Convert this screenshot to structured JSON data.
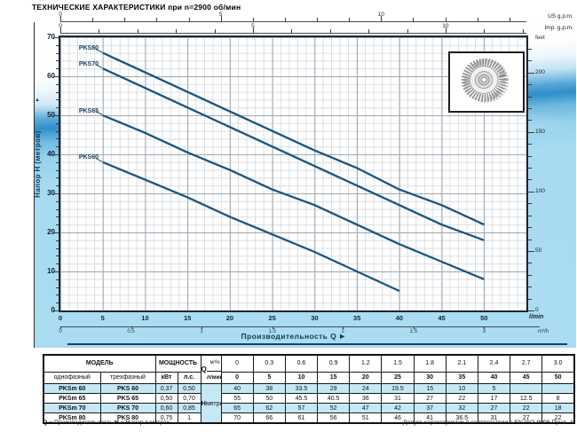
{
  "title": "ТЕХНИЧЕСКИЕ ХАРАКТЕРИСТИКИ при n=2900 об/мин",
  "chart": {
    "top_axis_us": {
      "tick_values": [
        0,
        5,
        10
      ],
      "label": "US g.p.m."
    },
    "top_axis_imp": {
      "tick_values": [
        0,
        5,
        10
      ],
      "label": "Imp. g.p.m."
    },
    "y_left": {
      "label": "Напор Н  (метров)",
      "arrow": "▲",
      "ticks": [
        0,
        10,
        20,
        30,
        40,
        50,
        60,
        70
      ]
    },
    "y_right": {
      "unit": "feet",
      "ticks": [
        0,
        50,
        100,
        150,
        200
      ]
    },
    "x_lmin": {
      "unit": "l/min",
      "ticks": [
        0,
        5,
        10,
        15,
        20,
        25,
        30,
        35,
        40,
        45,
        50
      ]
    },
    "x_m3h": {
      "unit": "m³/h",
      "ticks": [
        "0",
        "0.5",
        "1",
        "1.5",
        "2",
        "2.5",
        "3"
      ]
    },
    "x_label": "Производительность  Q",
    "x_arrow": "▶"
  },
  "chart_data": {
    "type": "line",
    "title": "ТЕХНИЧЕСКИЕ ХАРАКТЕРИСТИКИ при n=2900 об/мин",
    "xlabel": "Производительность Q (л/мин)",
    "ylabel": "Напор H (метров)",
    "xlim": [
      0,
      55
    ],
    "ylim": [
      0,
      70
    ],
    "grid": true,
    "legend_position": "inline-left",
    "line_color": "#1a5580",
    "series": [
      {
        "name": "PKS80",
        "x": [
          5,
          10,
          15,
          20,
          25,
          30,
          35,
          40,
          45,
          50
        ],
        "y": [
          66,
          61,
          56,
          51,
          46,
          41,
          36.5,
          31,
          27,
          22
        ]
      },
      {
        "name": "PKS70",
        "x": [
          5,
          10,
          15,
          20,
          25,
          30,
          35,
          40,
          45,
          50
        ],
        "y": [
          62,
          57,
          52,
          47,
          42,
          37,
          32,
          27,
          22,
          18
        ]
      },
      {
        "name": "PKS65",
        "x": [
          5,
          10,
          15,
          20,
          25,
          30,
          35,
          40,
          45,
          50
        ],
        "y": [
          50,
          45.5,
          40.5,
          36,
          31,
          27,
          22,
          17,
          12.5,
          8
        ]
      },
      {
        "name": "PKS60",
        "x": [
          5,
          10,
          15,
          20,
          25,
          30,
          35,
          40
        ],
        "y": [
          38,
          33.5,
          29,
          24,
          19.5,
          15,
          10,
          5
        ]
      }
    ]
  },
  "table": {
    "header": {
      "model": "МОДЕЛЬ",
      "power": "МОЩНОСТЬ",
      "single_phase": "однофазный",
      "three_phase": "трехфазный",
      "kw": "кВт",
      "hp": "л.с.",
      "q": "Q",
      "m3h": "м³/ч",
      "lmin": "л/мин",
      "h": "Н",
      "h_unit": "метры",
      "m3h_values": [
        "0",
        "0.3",
        "0.6",
        "0.9",
        "1.2",
        "1.5",
        "1.8",
        "2.1",
        "2.4",
        "2.7",
        "3.0"
      ],
      "lmin_values": [
        "0",
        "5",
        "10",
        "15",
        "20",
        "25",
        "30",
        "35",
        "40",
        "45",
        "50"
      ]
    },
    "rows": [
      {
        "single": "PKSm 60",
        "three": "PKS 60",
        "kw": "0,37",
        "hp": "0,50",
        "h": [
          "40",
          "38",
          "33.5",
          "29",
          "24",
          "19.5",
          "15",
          "10",
          "5",
          "",
          ""
        ]
      },
      {
        "single": "PKSm 65",
        "three": "PKS 65",
        "kw": "0,50",
        "hp": "0,70",
        "h": [
          "55",
          "50",
          "45.5",
          "40.5",
          "36",
          "31",
          "27",
          "22",
          "17",
          "12.5",
          "8"
        ]
      },
      {
        "single": "PKSm 70",
        "three": "PKS 70",
        "kw": "0,60",
        "hp": "0,85",
        "h": [
          "65",
          "62",
          "57",
          "52",
          "47",
          "42",
          "37",
          "32",
          "27",
          "22",
          "18"
        ]
      },
      {
        "single": "PKSm 80",
        "three": "PKS 80",
        "kw": "0,75",
        "hp": "1",
        "h": [
          "70",
          "66",
          "61",
          "56",
          "51",
          "46",
          "41",
          "36.5",
          "31",
          "27",
          "22"
        ]
      }
    ]
  },
  "footer": {
    "q_sym": "Q",
    "q_def": " = Производительность    ",
    "h_sym": "Н",
    "h_def": " = Напор в метрах",
    "tolerance": "Допуск характеристик в соответствии с EN ISO 9906 Прил.   А."
  }
}
